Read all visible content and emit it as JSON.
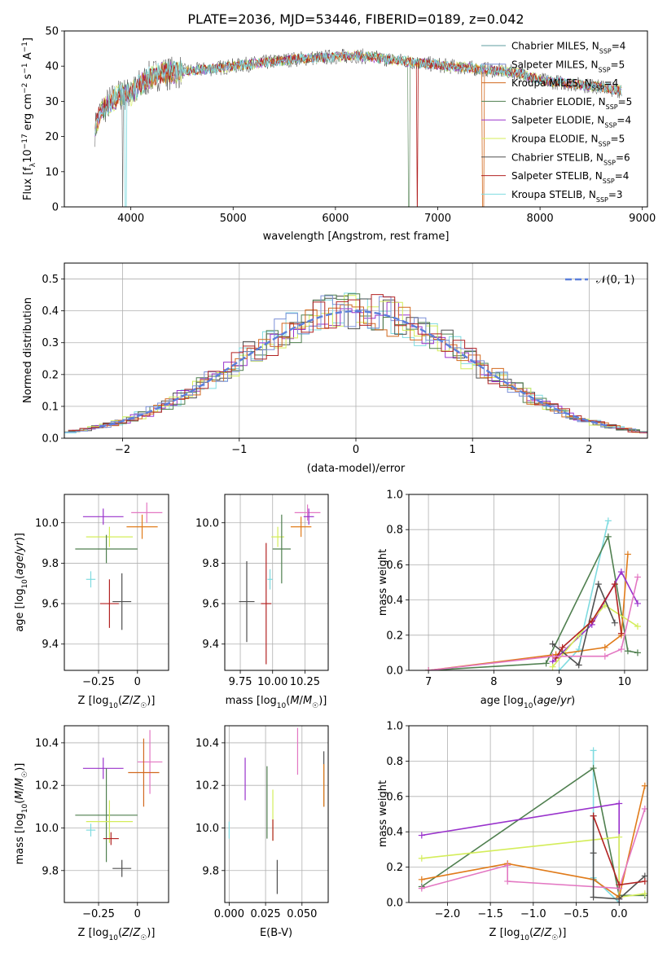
{
  "figure_title": "PLATE=2036, MJD=53446, FIBERID=0189, z=0.042",
  "colors": {
    "Chabrier MILES": "#5f9ea0",
    "Salpeter MILES": "#7b8fd8",
    "Kroupa MILES": "#d2691e",
    "Chabrier ELODIE": "#4f7f4f",
    "Salpeter ELODIE": "#9932cc",
    "Kroupa ELODIE": "#d4ed5a",
    "Chabrier STELIB": "#505050",
    "Salpeter STELIB": "#b22222",
    "Kroupa STELIB": "#7fdbe0",
    "pink": "#e377c2",
    "orange": "#e07b1a",
    "gauss": "#5b7fdb"
  },
  "chart_data": [
    {
      "id": "spectrum",
      "type": "line",
      "title": "PLATE=2036, MJD=53446, FIBERID=0189, z=0.042",
      "xlabel": "wavelength [Angstrom, rest frame]",
      "ylabel": "Flux [f",
      "xlim": [
        3350,
        9050
      ],
      "ylim": [
        0,
        50
      ],
      "xticks": [
        4000,
        5000,
        6000,
        7000,
        8000,
        9000
      ],
      "yticks": [
        0,
        10,
        20,
        30,
        40,
        50
      ],
      "grid": false,
      "legend_position": "upper-right",
      "series": [
        {
          "name": "Chabrier MILES, N",
          "n": "=4"
        },
        {
          "name": "Salpeter MILES, N",
          "n": "=5"
        },
        {
          "name": "Kroupa MILES, N",
          "n": "=4"
        },
        {
          "name": "Chabrier ELODIE, N",
          "n": "=5"
        },
        {
          "name": "Salpeter ELODIE, N",
          "n": "=4"
        },
        {
          "name": "Kroupa ELODIE, N",
          "n": "=5"
        },
        {
          "name": "Chabrier STELIB, N",
          "n": "=6"
        },
        {
          "name": "Salpeter STELIB, N",
          "n": "=4"
        },
        {
          "name": "Kroupa STELIB, N",
          "n": "=3"
        }
      ],
      "continuum": [
        [
          3650,
          22
        ],
        [
          3700,
          27
        ],
        [
          3800,
          30
        ],
        [
          3900,
          32
        ],
        [
          4000,
          32
        ],
        [
          4100,
          35
        ],
        [
          4200,
          37
        ],
        [
          4300,
          38
        ],
        [
          4400,
          38
        ],
        [
          4500,
          38.5
        ],
        [
          4700,
          39
        ],
        [
          5000,
          40
        ],
        [
          5300,
          41
        ],
        [
          5600,
          42
        ],
        [
          5900,
          42.5
        ],
        [
          6200,
          43
        ],
        [
          6500,
          42
        ],
        [
          6800,
          41
        ],
        [
          7100,
          40
        ],
        [
          7500,
          39
        ],
        [
          7800,
          38
        ],
        [
          8000,
          36
        ],
        [
          8300,
          35
        ],
        [
          8600,
          34
        ],
        [
          8800,
          33
        ]
      ]
    },
    {
      "id": "residual_hist",
      "type": "bar",
      "xlabel": "(data-model)/error",
      "ylabel": "Normed distribution",
      "xlim": [
        -2.5,
        2.5
      ],
      "ylim": [
        0,
        0.55
      ],
      "xticks": [
        -2,
        -1,
        0,
        1,
        2
      ],
      "yticks": [
        0.0,
        0.1,
        0.2,
        0.3,
        0.4,
        0.5
      ],
      "grid": true,
      "legend_position": "upper-right",
      "legend_label": "𝒩(0, 1)"
    },
    {
      "id": "age_vs_Z",
      "type": "scatter",
      "xlabel": "Z [log",
      "ylabel": "age  [log",
      "xlim": [
        -0.47,
        0.2
      ],
      "ylim": [
        9.27,
        10.14
      ],
      "xticks": [
        -0.25,
        0.0
      ],
      "yticks": [
        9.4,
        9.6,
        9.8,
        10.0
      ],
      "grid": true,
      "points": [
        {
          "series": "Salpeter ELODIE",
          "x": -0.22,
          "xerr": 0.13,
          "y": 10.03,
          "yerr": 0.04
        },
        {
          "series": "pink",
          "x": 0.06,
          "xerr": 0.1,
          "y": 10.05,
          "yerr": 0.05
        },
        {
          "series": "orange",
          "x": 0.03,
          "xerr": 0.1,
          "y": 9.98,
          "yerr": 0.06
        },
        {
          "series": "Kroupa ELODIE",
          "x": -0.18,
          "xerr": 0.15,
          "y": 9.93,
          "yerr": 0.05
        },
        {
          "series": "Chabrier ELODIE",
          "x": -0.2,
          "xerr": 0.2,
          "y": 9.87,
          "yerr": 0.07
        },
        {
          "series": "Kroupa STELIB",
          "x": -0.3,
          "xerr": 0.03,
          "y": 9.72,
          "yerr": 0.04
        },
        {
          "series": "Chabrier STELIB",
          "x": -0.1,
          "xerr": 0.06,
          "y": 9.61,
          "yerr": 0.14
        },
        {
          "series": "Salpeter STELIB",
          "x": -0.18,
          "xerr": 0.06,
          "y": 9.6,
          "yerr": 0.12
        }
      ]
    },
    {
      "id": "age_vs_mass",
      "type": "scatter",
      "xlabel": "mass [log",
      "ylabel": "",
      "xlim": [
        9.63,
        10.43
      ],
      "ylim": [
        9.27,
        10.14
      ],
      "xticks": [
        9.75,
        10.0,
        10.25
      ],
      "xticklabels": [
        "9.75",
        "10.00",
        "10.25"
      ],
      "yticks": [
        9.4,
        9.6,
        9.8,
        10.0
      ],
      "grid": true,
      "points": [
        {
          "series": "pink",
          "x": 10.27,
          "xerr": 0.1,
          "y": 10.05,
          "yerr": 0.04
        },
        {
          "series": "Salpeter ELODIE",
          "x": 10.28,
          "xerr": 0.04,
          "y": 10.03,
          "yerr": 0.04
        },
        {
          "series": "orange",
          "x": 10.22,
          "xerr": 0.08,
          "y": 9.98,
          "yerr": 0.05
        },
        {
          "series": "Kroupa ELODIE",
          "x": 10.04,
          "xerr": 0.05,
          "y": 9.93,
          "yerr": 0.05
        },
        {
          "series": "Chabrier ELODIE",
          "x": 10.07,
          "xerr": 0.07,
          "y": 9.87,
          "yerr": 0.17
        },
        {
          "series": "Kroupa STELIB",
          "x": 9.98,
          "xerr": 0.02,
          "y": 9.72,
          "yerr": 0.05
        },
        {
          "series": "Chabrier STELIB",
          "x": 9.8,
          "xerr": 0.06,
          "y": 9.61,
          "yerr": 0.2
        },
        {
          "series": "Salpeter STELIB",
          "x": 9.95,
          "xerr": 0.04,
          "y": 9.6,
          "yerr": 0.3
        }
      ]
    },
    {
      "id": "weight_vs_age",
      "type": "line",
      "xlabel": "age  [log",
      "ylabel": "mass weight",
      "xlim": [
        6.7,
        10.35
      ],
      "ylim": [
        0,
        1.0
      ],
      "xticks": [
        7,
        8,
        9,
        10
      ],
      "yticks": [
        0.0,
        0.2,
        0.4,
        0.6,
        0.8,
        1.0
      ],
      "grid": true,
      "series": [
        {
          "color": "Kroupa STELIB",
          "points": [
            [
              9.0,
              0.0
            ],
            [
              9.3,
              0.12
            ],
            [
              9.75,
              0.85
            ]
          ]
        },
        {
          "color": "Chabrier ELODIE",
          "points": [
            [
              7.0,
              0.0
            ],
            [
              8.8,
              0.04
            ],
            [
              9.75,
              0.76
            ],
            [
              10.05,
              0.11
            ],
            [
              10.2,
              0.1
            ]
          ]
        },
        {
          "color": "orange",
          "points": [
            [
              7.0,
              0.0
            ],
            [
              8.95,
              0.09
            ],
            [
              9.7,
              0.13
            ],
            [
              9.95,
              0.2
            ],
            [
              10.05,
              0.66
            ]
          ]
        },
        {
          "color": "Salpeter ELODIE",
          "points": [
            [
              8.9,
              0.05
            ],
            [
              9.5,
              0.26
            ],
            [
              9.95,
              0.56
            ],
            [
              10.2,
              0.38
            ]
          ]
        },
        {
          "color": "Kroupa ELODIE",
          "points": [
            [
              8.9,
              0.02
            ],
            [
              9.3,
              0.2
            ],
            [
              9.7,
              0.37
            ],
            [
              10.2,
              0.25
            ]
          ]
        },
        {
          "color": "Chabrier STELIB",
          "points": [
            [
              8.9,
              0.15
            ],
            [
              9.3,
              0.03
            ],
            [
              9.6,
              0.49
            ],
            [
              9.85,
              0.27
            ]
          ]
        },
        {
          "color": "Salpeter STELIB",
          "points": [
            [
              8.95,
              0.07
            ],
            [
              9.05,
              0.13
            ],
            [
              9.5,
              0.28
            ],
            [
              9.85,
              0.49
            ],
            [
              9.95,
              0.21
            ]
          ]
        },
        {
          "color": "pink",
          "points": [
            [
              7.0,
              0.0
            ],
            [
              8.9,
              0.08
            ],
            [
              9.7,
              0.08
            ],
            [
              9.95,
              0.12
            ],
            [
              10.2,
              0.53
            ]
          ]
        }
      ]
    },
    {
      "id": "mass_vs_Z",
      "type": "scatter",
      "xlabel": "Z [log",
      "ylabel": "mass [log",
      "xlim": [
        -0.47,
        0.2
      ],
      "ylim": [
        9.65,
        10.48
      ],
      "xticks": [
        -0.25,
        0.0
      ],
      "yticks": [
        9.8,
        10.0,
        10.2,
        10.4
      ],
      "grid": true,
      "points": [
        {
          "series": "pink",
          "x": 0.08,
          "xerr": 0.08,
          "y": 10.31,
          "yerr": 0.15
        },
        {
          "series": "Salpeter ELODIE",
          "x": -0.22,
          "xerr": 0.13,
          "y": 10.28,
          "yerr": 0.05
        },
        {
          "series": "Kroupa MILES",
          "x": 0.04,
          "xerr": 0.1,
          "y": 10.26,
          "yerr": 0.16
        },
        {
          "series": "Chabrier ELODIE",
          "x": -0.2,
          "xerr": 0.2,
          "y": 10.06,
          "yerr": 0.22
        },
        {
          "series": "Kroupa ELODIE",
          "x": -0.18,
          "xerr": 0.15,
          "y": 10.03,
          "yerr": 0.1
        },
        {
          "series": "Kroupa STELIB",
          "x": -0.3,
          "xerr": 0.03,
          "y": 9.99,
          "yerr": 0.03
        },
        {
          "series": "Salpeter STELIB",
          "x": -0.17,
          "xerr": 0.05,
          "y": 9.95,
          "yerr": 0.03
        },
        {
          "series": "Chabrier STELIB",
          "x": -0.1,
          "xerr": 0.06,
          "y": 9.81,
          "yerr": 0.04
        }
      ]
    },
    {
      "id": "mass_vs_ebv",
      "type": "scatter",
      "xlabel": "E(B-V)",
      "ylabel": "",
      "xlim": [
        -0.003,
        0.068
      ],
      "ylim": [
        9.65,
        10.48
      ],
      "xticks": [
        0.0,
        0.025,
        0.05
      ],
      "xticklabels": [
        "0.000",
        "0.025",
        "0.050"
      ],
      "yticks": [
        9.8,
        10.0,
        10.2,
        10.4
      ],
      "grid": true,
      "points": [
        {
          "series": "pink",
          "x": 0.047,
          "y": 10.36,
          "yerr": 0.11
        },
        {
          "series": "Salpeter ELODIE",
          "x": 0.011,
          "y": 10.23,
          "yerr": 0.1
        },
        {
          "series": "Chabrier STELIB",
          "x": 0.065,
          "y": 10.23,
          "yerr": 0.13
        },
        {
          "series": "orange",
          "x": 0.065,
          "y": 10.2,
          "yerr": 0.1
        },
        {
          "series": "Chabrier ELODIE",
          "x": 0.026,
          "y": 10.12,
          "yerr": 0.17
        },
        {
          "series": "Kroupa ELODIE",
          "x": 0.03,
          "y": 10.06,
          "yerr": 0.12
        },
        {
          "series": "Salpeter STELIB",
          "x": 0.03,
          "y": 9.99,
          "yerr": 0.05
        },
        {
          "series": "Kroupa STELIB",
          "x": 0.0,
          "y": 9.99,
          "yerr": 0.04
        },
        {
          "series": "Chabrier STELIB",
          "x": 0.033,
          "y": 9.77,
          "yerr": 0.08
        }
      ]
    },
    {
      "id": "weight_vs_Z",
      "type": "line",
      "xlabel": "Z [log",
      "ylabel": "mass weight",
      "xlim": [
        -2.45,
        0.33
      ],
      "ylim": [
        0,
        1.0
      ],
      "xticks": [
        -2.0,
        -1.5,
        -1.0,
        -0.5,
        0.0
      ],
      "xticklabels": [
        "−2.0",
        "−1.5",
        "−1.0",
        "−0.5",
        "0.0"
      ],
      "yticks": [
        0.0,
        0.2,
        0.4,
        0.6,
        0.8,
        1.0
      ],
      "grid": true,
      "series": [
        {
          "color": "Kroupa STELIB",
          "points": [
            [
              -0.3,
              0.86
            ],
            [
              -0.3,
              0.14
            ],
            [
              0.0,
              0.0
            ]
          ]
        },
        {
          "color": "Chabrier ELODIE",
          "points": [
            [
              -2.3,
              0.09
            ],
            [
              -0.3,
              0.76
            ],
            [
              0.0,
              0.04
            ],
            [
              0.3,
              0.04
            ]
          ]
        },
        {
          "color": "Salpeter ELODIE",
          "points": [
            [
              -2.3,
              0.38
            ],
            [
              0.0,
              0.56
            ],
            [
              0.0,
              0.02
            ]
          ]
        },
        {
          "color": "Kroupa ELODIE",
          "points": [
            [
              -2.3,
              0.25
            ],
            [
              0.0,
              0.37
            ],
            [
              0.0,
              0.03
            ],
            [
              0.3,
              0.05
            ]
          ]
        },
        {
          "color": "orange",
          "points": [
            [
              -2.3,
              0.13
            ],
            [
              -1.3,
              0.22
            ],
            [
              -0.3,
              0.13
            ],
            [
              0.0,
              0.03
            ],
            [
              0.3,
              0.66
            ]
          ]
        },
        {
          "color": "pink",
          "points": [
            [
              -2.3,
              0.08
            ],
            [
              -1.3,
              0.21
            ],
            [
              -1.3,
              0.12
            ],
            [
              0.0,
              0.08
            ],
            [
              0.3,
              0.53
            ]
          ]
        },
        {
          "color": "Chabrier STELIB",
          "points": [
            [
              -0.3,
              0.49
            ],
            [
              -0.3,
              0.28
            ],
            [
              -0.3,
              0.03
            ],
            [
              0.0,
              0.02
            ],
            [
              0.3,
              0.15
            ]
          ]
        },
        {
          "color": "Salpeter STELIB",
          "points": [
            [
              -0.3,
              0.49
            ],
            [
              0.0,
              0.1
            ],
            [
              0.3,
              0.12
            ]
          ]
        }
      ]
    }
  ]
}
